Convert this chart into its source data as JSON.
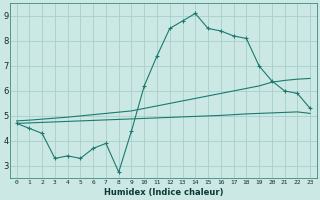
{
  "x": [
    0,
    1,
    2,
    3,
    4,
    5,
    6,
    7,
    8,
    9,
    10,
    11,
    12,
    13,
    14,
    15,
    16,
    17,
    18,
    19,
    20,
    21,
    22,
    23
  ],
  "y_main": [
    4.7,
    4.5,
    4.3,
    3.3,
    3.4,
    3.3,
    3.7,
    3.9,
    2.75,
    4.4,
    6.2,
    7.4,
    8.5,
    8.8,
    9.1,
    8.5,
    8.4,
    8.2,
    8.1,
    7.0,
    6.4,
    6.0,
    5.9,
    5.3
  ],
  "y_upper": [
    4.8,
    4.83,
    4.87,
    4.91,
    4.95,
    5.0,
    5.05,
    5.1,
    5.15,
    5.2,
    5.3,
    5.4,
    5.5,
    5.6,
    5.7,
    5.8,
    5.9,
    6.0,
    6.1,
    6.2,
    6.35,
    6.42,
    6.47,
    6.5
  ],
  "y_lower": [
    4.7,
    4.72,
    4.74,
    4.76,
    4.78,
    4.8,
    4.82,
    4.84,
    4.86,
    4.88,
    4.9,
    4.92,
    4.94,
    4.96,
    4.98,
    5.0,
    5.02,
    5.05,
    5.08,
    5.1,
    5.12,
    5.14,
    5.16,
    5.1
  ],
  "color_main": "#1a7a6e",
  "bg_color": "#cce8e4",
  "grid_color": "#a8d0cc",
  "xlabel": "Humidex (Indice chaleur)",
  "xlim": [
    -0.5,
    23.5
  ],
  "ylim": [
    2.5,
    9.5
  ],
  "yticks": [
    3,
    4,
    5,
    6,
    7,
    8,
    9
  ],
  "xtick_labels": [
    "0",
    "1",
    "2",
    "3",
    "4",
    "5",
    "6",
    "7",
    "8",
    "9",
    "10",
    "11",
    "12",
    "13",
    "14",
    "15",
    "16",
    "17",
    "18",
    "19",
    "20",
    "21",
    "22",
    "23"
  ]
}
